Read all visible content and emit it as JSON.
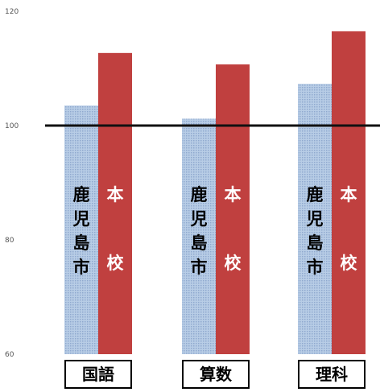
{
  "chart_data": {
    "type": "bar",
    "categories": [
      "国語",
      "算数",
      "理科"
    ],
    "series": [
      {
        "name": "鹿児島市",
        "values": [
          103.5,
          101.2,
          107.3
        ],
        "color": "#a9c1e0",
        "label_color": "#000000"
      },
      {
        "name": "本校",
        "values": [
          112.7,
          110.7,
          116.5
        ],
        "color": "#c0403f",
        "label_color": "#ffffff"
      }
    ],
    "yticks": [
      60,
      80,
      100,
      120
    ],
    "ylim": [
      60,
      120
    ],
    "reference_line": 100,
    "grid": false,
    "title": "",
    "xlabel": "",
    "ylabel": ""
  }
}
